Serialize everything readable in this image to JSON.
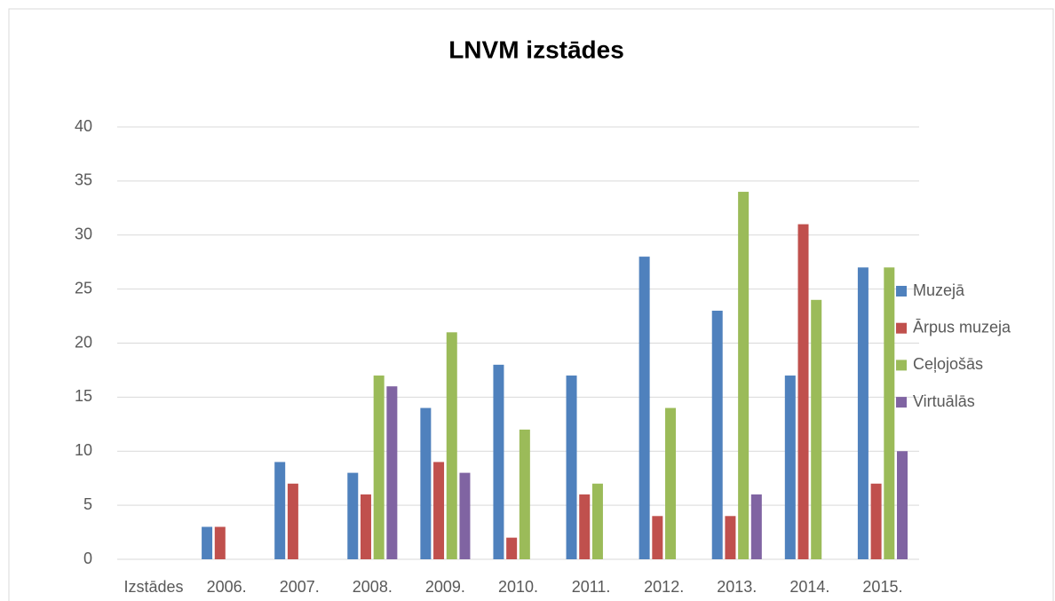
{
  "chart_data": {
    "type": "bar",
    "title": "LNVM izstādes",
    "categories": [
      "Izstādes",
      "2006.",
      "2007.",
      "2008.",
      "2009.",
      "2010.",
      "2011.",
      "2012.",
      "2013.",
      "2014.",
      "2015."
    ],
    "series": [
      {
        "name": "Muzejā",
        "color": "#4f81bd",
        "values": [
          null,
          3,
          9,
          8,
          14,
          18,
          17,
          28,
          23,
          17,
          27
        ]
      },
      {
        "name": "Ārpus muzeja",
        "color": "#c0504d",
        "values": [
          null,
          3,
          7,
          6,
          9,
          2,
          6,
          4,
          4,
          31,
          7
        ]
      },
      {
        "name": "Ceļojošās",
        "color": "#9bbb59",
        "values": [
          null,
          null,
          null,
          17,
          21,
          12,
          7,
          14,
          34,
          24,
          27
        ]
      },
      {
        "name": "Virtuālās",
        "color": "#8064a2",
        "values": [
          null,
          null,
          null,
          16,
          8,
          null,
          null,
          null,
          6,
          null,
          10
        ]
      }
    ],
    "ylim": [
      0,
      40
    ],
    "yticks": [
      0,
      5,
      10,
      15,
      20,
      25,
      30,
      35,
      40
    ],
    "grid": true,
    "legend": "right"
  }
}
